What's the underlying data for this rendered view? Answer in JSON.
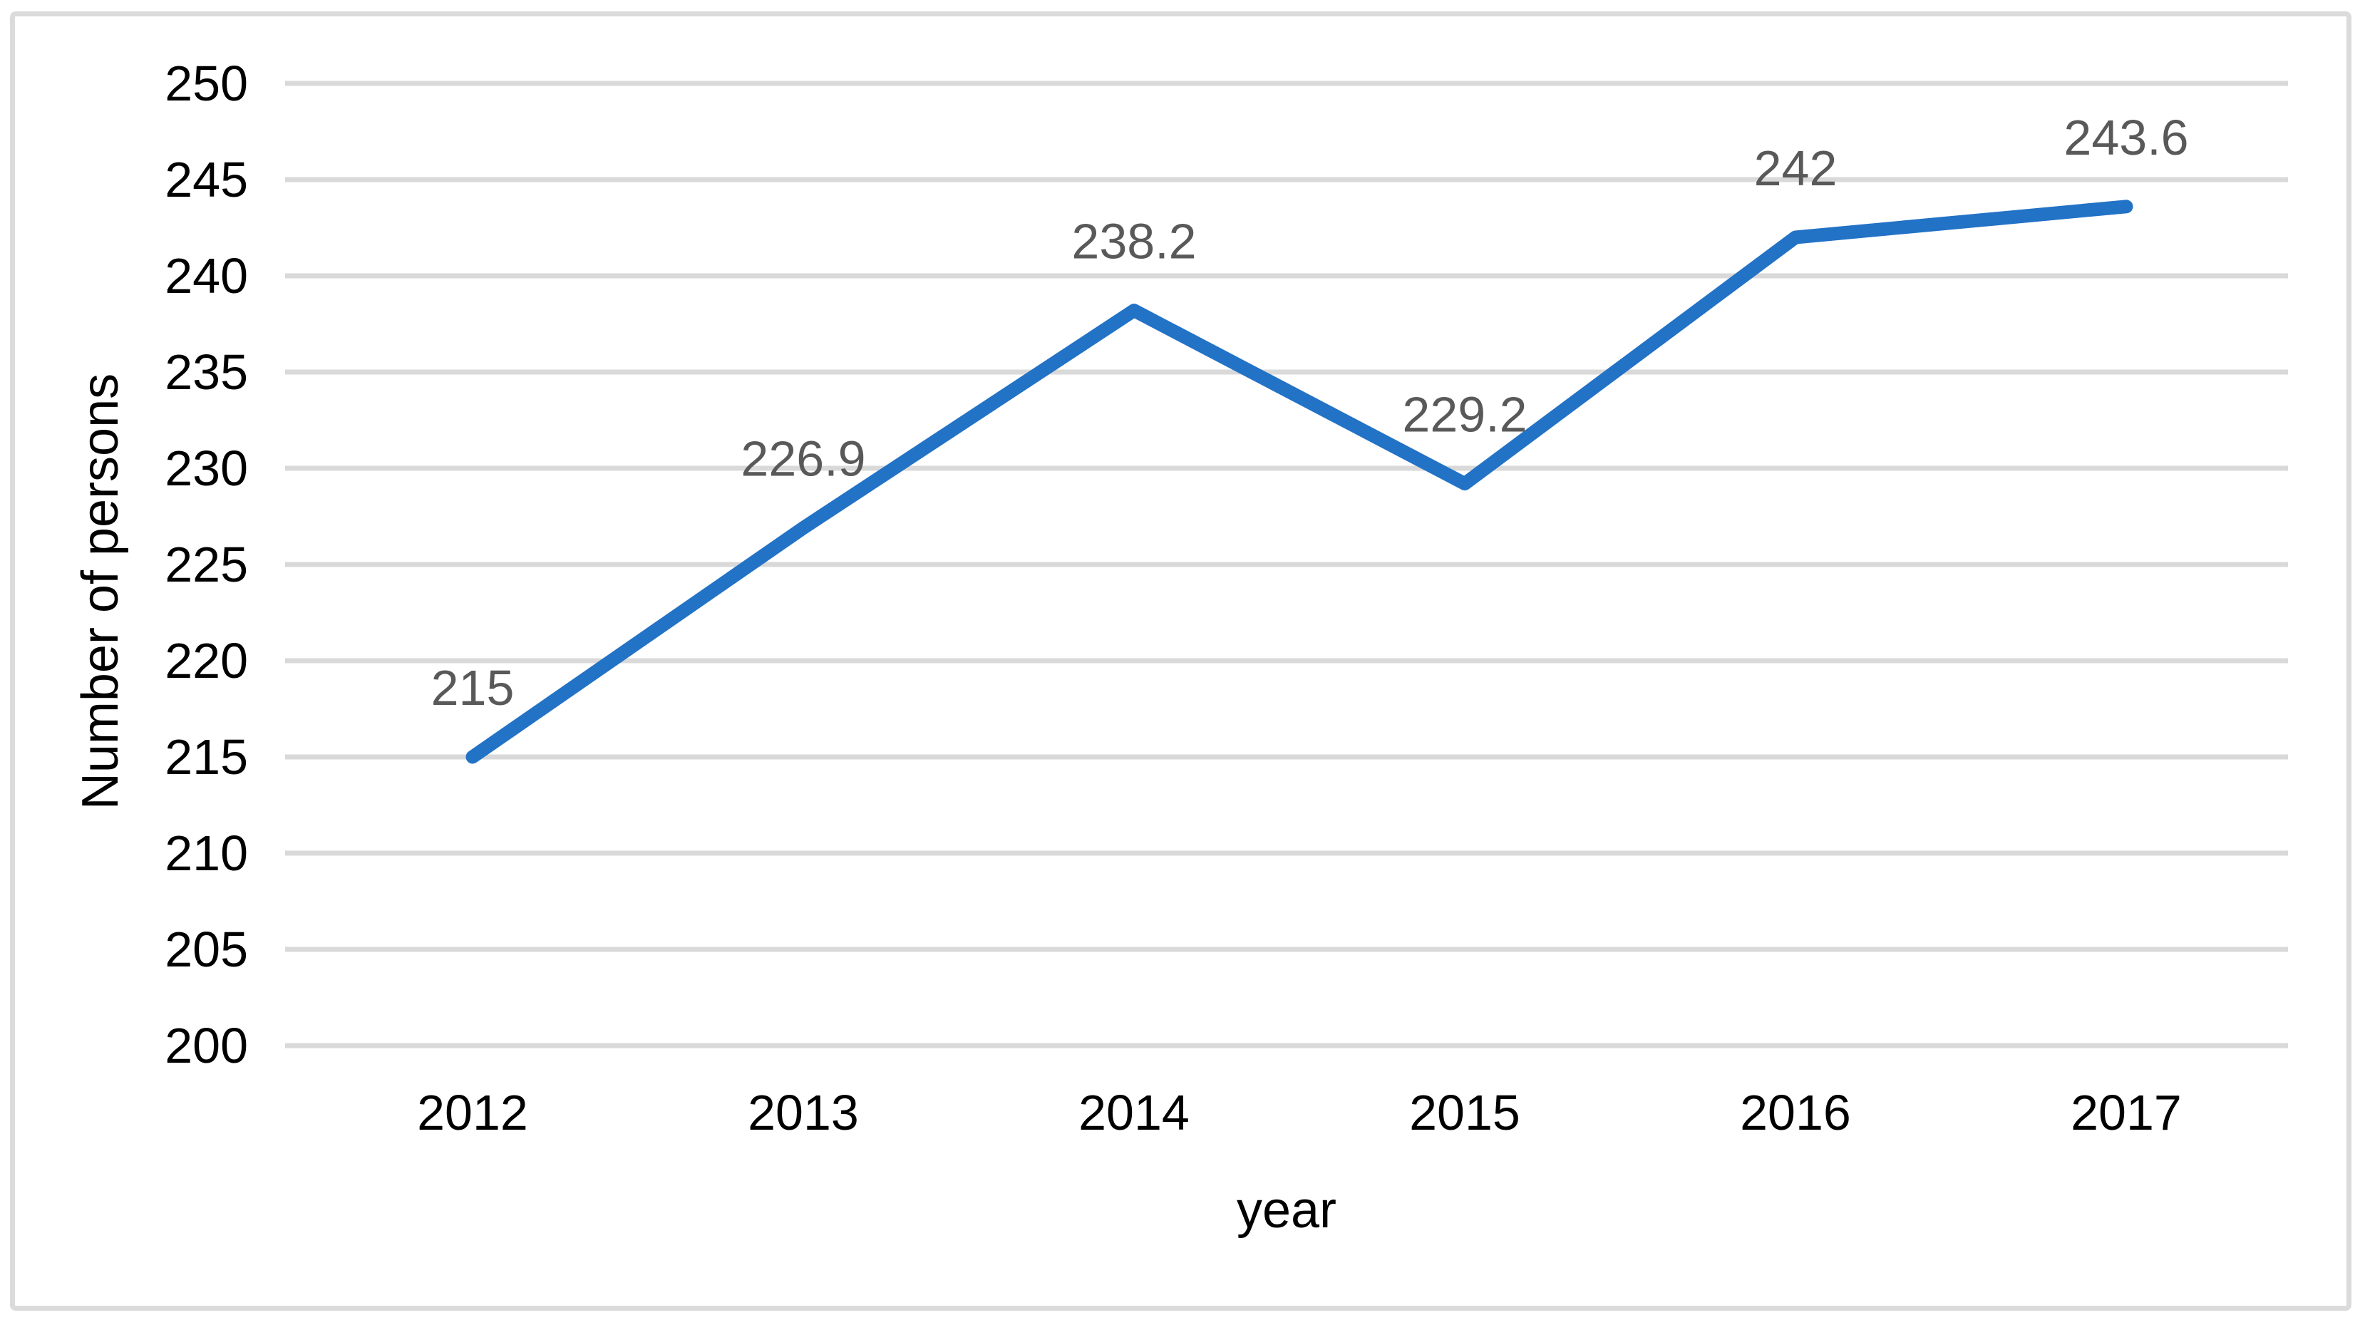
{
  "chart_data": {
    "type": "line",
    "categories": [
      "2012",
      "2013",
      "2014",
      "2015",
      "2016",
      "2017"
    ],
    "series": [
      {
        "name": "Number of persons",
        "values": [
          215,
          226.9,
          238.2,
          229.2,
          242,
          243.6
        ],
        "data_labels": [
          "215",
          "226.9",
          "238.2",
          "229.2",
          "242",
          "243.6"
        ]
      }
    ],
    "title": "",
    "xlabel": "year",
    "ylabel": "Number of persons",
    "ylim": [
      200,
      250
    ],
    "ytick_step": 5,
    "yticks": [
      "200",
      "205",
      "210",
      "215",
      "220",
      "225",
      "230",
      "235",
      "240",
      "245",
      "250"
    ],
    "grid": "horizontal",
    "legend_position": "none",
    "colors": {
      "line": "#2272C6",
      "gridline": "#D9D9D9",
      "data_label": "#595959",
      "tick_label": "#000000",
      "axis_title": "#000000",
      "figure_border": "#DBDBDB",
      "background": "#FFFFFF"
    }
  }
}
